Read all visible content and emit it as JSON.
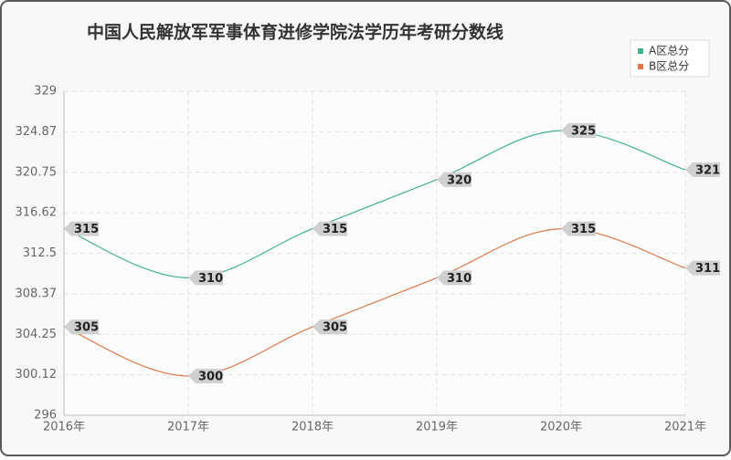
{
  "chart_data": {
    "type": "line",
    "title": "中国人民解放军军事体育进修学院法学历年考研分数线",
    "categories": [
      "2016年",
      "2017年",
      "2018年",
      "2019年",
      "2020年",
      "2021年"
    ],
    "series": [
      {
        "name": "A区总分",
        "color": "#3fb28f",
        "values": [
          315,
          310,
          315,
          320,
          325,
          321
        ]
      },
      {
        "name": "B区总分",
        "color": "#e0784a",
        "values": [
          305,
          300,
          305,
          310,
          315,
          311
        ]
      }
    ],
    "ylim": [
      296,
      329
    ],
    "yticks": [
      296,
      300.12,
      304.25,
      308.37,
      312.5,
      316.62,
      320.75,
      324.87,
      329
    ],
    "grid": true,
    "legend": "top-right"
  }
}
